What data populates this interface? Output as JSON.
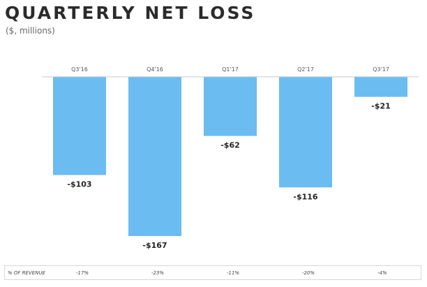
{
  "chart_data": {
    "type": "bar",
    "title": "QUARTERLY NET LOSS",
    "subtitle": "($, millions)",
    "categories": [
      "Q3'16",
      "Q4'16",
      "Q1'17",
      "Q2'17",
      "Q3'17"
    ],
    "values": [
      -103,
      -167,
      -62,
      -116,
      -21
    ],
    "data_labels": [
      "-$103",
      "-$167",
      "-$62",
      "-$116",
      "-$21"
    ],
    "ylim": [
      -167,
      0
    ],
    "grid": false,
    "bar_color": "#6bbcf0",
    "revenue_row": {
      "label": "% OF REVENUE",
      "values": [
        "-17%",
        "-23%",
        "-11%",
        "-20%",
        "-4%"
      ]
    }
  }
}
